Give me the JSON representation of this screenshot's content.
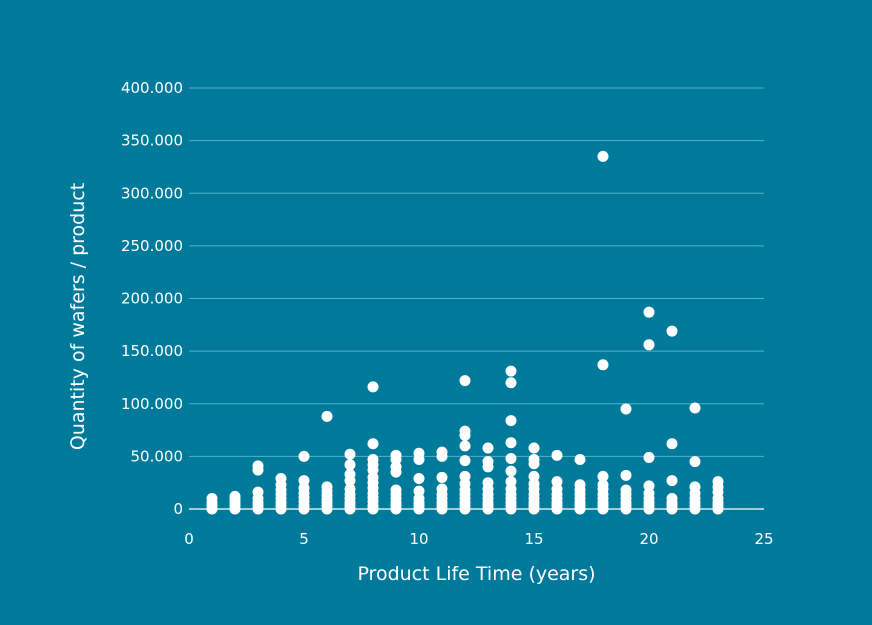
{
  "background_color": "#007a9b",
  "marker_color": "#ffffff",
  "gridline_color": "#4fb3c9",
  "chart_data": {
    "type": "scatter",
    "title": "",
    "xlabel": "Product Life Time (years)",
    "ylabel": "Quantity of wafers / product",
    "xlim": [
      0,
      25
    ],
    "ylim": [
      0,
      400000
    ],
    "grid": true,
    "legend": "none",
    "x_ticks": [
      "0",
      "5",
      "10",
      "15",
      "20",
      "25"
    ],
    "y_ticks": [
      "0",
      "50.000",
      "100.000",
      "150.000",
      "200.000",
      "250.000",
      "300.000",
      "350.000",
      "400.000"
    ],
    "x_tick_values": [
      0,
      5,
      10,
      15,
      20,
      25
    ],
    "y_tick_values": [
      0,
      50000,
      100000,
      150000,
      200000,
      250000,
      300000,
      350000,
      400000
    ],
    "points": [
      [
        1,
        0
      ],
      [
        1,
        3000
      ],
      [
        1,
        6000
      ],
      [
        1,
        10000
      ],
      [
        2,
        0
      ],
      [
        2,
        3000
      ],
      [
        2,
        6000
      ],
      [
        2,
        9000
      ],
      [
        2,
        12000
      ],
      [
        3,
        0
      ],
      [
        3,
        3000
      ],
      [
        3,
        6000
      ],
      [
        3,
        10000
      ],
      [
        3,
        16000
      ],
      [
        3,
        37000
      ],
      [
        3,
        41000
      ],
      [
        4,
        0
      ],
      [
        4,
        3000
      ],
      [
        4,
        6000
      ],
      [
        4,
        10000
      ],
      [
        4,
        14000
      ],
      [
        4,
        18000
      ],
      [
        4,
        23000
      ],
      [
        4,
        29000
      ],
      [
        5,
        0
      ],
      [
        5,
        3000
      ],
      [
        5,
        7000
      ],
      [
        5,
        11000
      ],
      [
        5,
        15000
      ],
      [
        5,
        20000
      ],
      [
        5,
        27000
      ],
      [
        5,
        50000
      ],
      [
        6,
        0
      ],
      [
        6,
        3000
      ],
      [
        6,
        6000
      ],
      [
        6,
        9000
      ],
      [
        6,
        13000
      ],
      [
        6,
        17000
      ],
      [
        6,
        21000
      ],
      [
        6,
        88000
      ],
      [
        7,
        0
      ],
      [
        7,
        3000
      ],
      [
        7,
        6000
      ],
      [
        7,
        10000
      ],
      [
        7,
        14000
      ],
      [
        7,
        19000
      ],
      [
        7,
        27000
      ],
      [
        7,
        33000
      ],
      [
        7,
        42000
      ],
      [
        7,
        52000
      ],
      [
        8,
        0
      ],
      [
        8,
        3000
      ],
      [
        8,
        7000
      ],
      [
        8,
        11000
      ],
      [
        8,
        15000
      ],
      [
        8,
        20000
      ],
      [
        8,
        25000
      ],
      [
        8,
        30000
      ],
      [
        8,
        37000
      ],
      [
        8,
        42000
      ],
      [
        8,
        47000
      ],
      [
        8,
        62000
      ],
      [
        8,
        116000
      ],
      [
        9,
        0
      ],
      [
        9,
        3000
      ],
      [
        9,
        6000
      ],
      [
        9,
        10000
      ],
      [
        9,
        14000
      ],
      [
        9,
        18000
      ],
      [
        9,
        35000
      ],
      [
        9,
        40000
      ],
      [
        9,
        47000
      ],
      [
        9,
        51000
      ],
      [
        10,
        0
      ],
      [
        10,
        3000
      ],
      [
        10,
        6000
      ],
      [
        10,
        10000
      ],
      [
        10,
        17000
      ],
      [
        10,
        29000
      ],
      [
        10,
        47000
      ],
      [
        10,
        53000
      ],
      [
        11,
        0
      ],
      [
        11,
        3000
      ],
      [
        11,
        6000
      ],
      [
        11,
        10000
      ],
      [
        11,
        14000
      ],
      [
        11,
        19000
      ],
      [
        11,
        30000
      ],
      [
        11,
        50000
      ],
      [
        11,
        54000
      ],
      [
        12,
        0
      ],
      [
        12,
        3000
      ],
      [
        12,
        6000
      ],
      [
        12,
        10000
      ],
      [
        12,
        14000
      ],
      [
        12,
        18000
      ],
      [
        12,
        24000
      ],
      [
        12,
        31000
      ],
      [
        12,
        46000
      ],
      [
        12,
        60000
      ],
      [
        12,
        70000
      ],
      [
        12,
        74000
      ],
      [
        12,
        122000
      ],
      [
        13,
        0
      ],
      [
        13,
        3000
      ],
      [
        13,
        6000
      ],
      [
        13,
        10000
      ],
      [
        13,
        14000
      ],
      [
        13,
        19000
      ],
      [
        13,
        25000
      ],
      [
        13,
        40000
      ],
      [
        13,
        45000
      ],
      [
        13,
        58000
      ],
      [
        14,
        0
      ],
      [
        14,
        3000
      ],
      [
        14,
        6000
      ],
      [
        14,
        10000
      ],
      [
        14,
        14000
      ],
      [
        14,
        19000
      ],
      [
        14,
        26000
      ],
      [
        14,
        36000
      ],
      [
        14,
        48000
      ],
      [
        14,
        63000
      ],
      [
        14,
        84000
      ],
      [
        14,
        120000
      ],
      [
        14,
        131000
      ],
      [
        15,
        0
      ],
      [
        15,
        3000
      ],
      [
        15,
        6000
      ],
      [
        15,
        10000
      ],
      [
        15,
        14000
      ],
      [
        15,
        19000
      ],
      [
        15,
        24000
      ],
      [
        15,
        31000
      ],
      [
        15,
        43000
      ],
      [
        15,
        47000
      ],
      [
        15,
        58000
      ],
      [
        16,
        0
      ],
      [
        16,
        3000
      ],
      [
        16,
        6000
      ],
      [
        16,
        10000
      ],
      [
        16,
        14000
      ],
      [
        16,
        19000
      ],
      [
        16,
        26000
      ],
      [
        16,
        51000
      ],
      [
        17,
        0
      ],
      [
        17,
        3000
      ],
      [
        17,
        6000
      ],
      [
        17,
        10000
      ],
      [
        17,
        14000
      ],
      [
        17,
        18000
      ],
      [
        17,
        23000
      ],
      [
        17,
        47000
      ],
      [
        18,
        0
      ],
      [
        18,
        3000
      ],
      [
        18,
        6000
      ],
      [
        18,
        10000
      ],
      [
        18,
        14000
      ],
      [
        18,
        19000
      ],
      [
        18,
        23000
      ],
      [
        18,
        31000
      ],
      [
        18,
        137000
      ],
      [
        18,
        335000
      ],
      [
        19,
        0
      ],
      [
        19,
        3000
      ],
      [
        19,
        6000
      ],
      [
        19,
        10000
      ],
      [
        19,
        14000
      ],
      [
        19,
        18000
      ],
      [
        19,
        32000
      ],
      [
        19,
        95000
      ],
      [
        20,
        0
      ],
      [
        20,
        3000
      ],
      [
        20,
        6000
      ],
      [
        20,
        10000
      ],
      [
        20,
        15000
      ],
      [
        20,
        22000
      ],
      [
        20,
        49000
      ],
      [
        20,
        156000
      ],
      [
        20,
        187000
      ],
      [
        21,
        0
      ],
      [
        21,
        3000
      ],
      [
        21,
        6000
      ],
      [
        21,
        10000
      ],
      [
        21,
        27000
      ],
      [
        21,
        62000
      ],
      [
        21,
        169000
      ],
      [
        22,
        0
      ],
      [
        22,
        3000
      ],
      [
        22,
        6000
      ],
      [
        22,
        10000
      ],
      [
        22,
        15000
      ],
      [
        22,
        21000
      ],
      [
        22,
        45000
      ],
      [
        22,
        96000
      ],
      [
        23,
        0
      ],
      [
        23,
        3000
      ],
      [
        23,
        6000
      ],
      [
        23,
        10000
      ],
      [
        23,
        16000
      ],
      [
        23,
        21000
      ],
      [
        23,
        26000
      ]
    ]
  }
}
